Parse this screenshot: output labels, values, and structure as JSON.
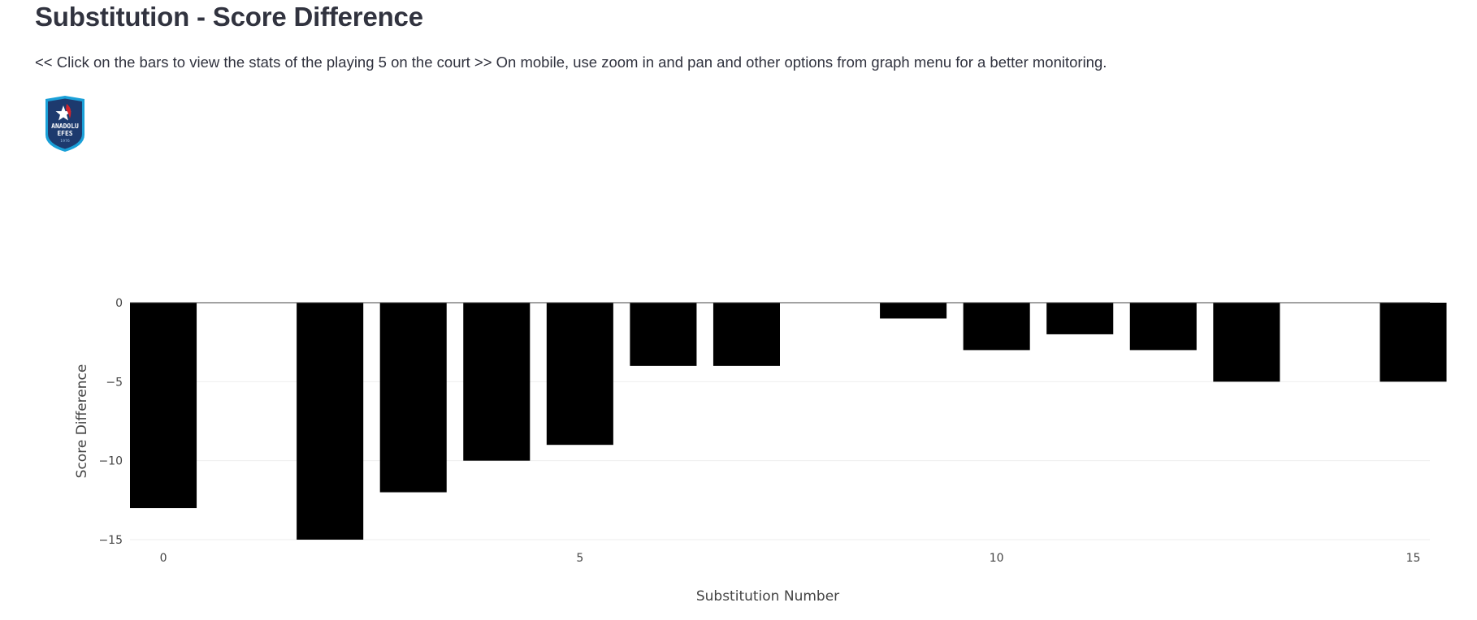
{
  "page": {
    "title": "Substitution - Score Difference",
    "subtitle": "<< Click on the bars to view the stats of the playing 5 on the court >> On mobile, use zoom in and pan and other options from graph menu for a better monitoring.",
    "logo": {
      "text": [
        "ANADOLU",
        "EFES",
        "1976"
      ],
      "icon": "team-logo-shield"
    }
  },
  "colors": {
    "bar": "#000000",
    "grid": "#eeeeee",
    "zeroline": "#444444",
    "text": "#31333f",
    "logo_dark": "#1d3a6e",
    "logo_border": "#1aa0d8",
    "logo_accent": "#d2232a"
  },
  "chart_data": {
    "type": "bar",
    "x": [
      0,
      2,
      3,
      4,
      5,
      6,
      7,
      9,
      10,
      11,
      12,
      13,
      15
    ],
    "values": [
      -13,
      -15,
      -12,
      -10,
      -9,
      -4,
      -4,
      -1,
      -3,
      -2,
      -3,
      -5,
      -5
    ],
    "xlabel": "Substitution Number",
    "ylabel": "Score Difference",
    "xticks": [
      "0",
      "5",
      "10",
      "15"
    ],
    "xtick_values": [
      0,
      5,
      10,
      15
    ],
    "yticks": [
      "0",
      "−5",
      "−10",
      "−15"
    ],
    "ytick_values": [
      0,
      -5,
      -10,
      -15
    ],
    "xlim": [
      -0.4,
      15.2
    ],
    "ylim": [
      -15,
      0
    ],
    "grid": true
  }
}
